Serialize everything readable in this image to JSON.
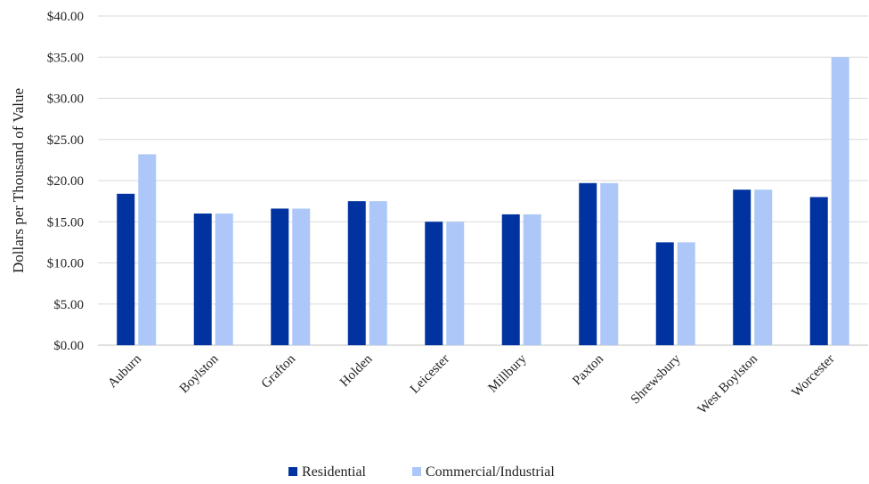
{
  "chart_data": {
    "type": "bar",
    "title": "",
    "xlabel": "",
    "ylabel": "Dollars per Thousand of Value",
    "ylim": [
      0,
      40
    ],
    "y_ticks": [
      "$0.00",
      "$5.00",
      "$10.00",
      "$15.00",
      "$20.00",
      "$25.00",
      "$30.00",
      "$35.00",
      "$40.00"
    ],
    "grid": true,
    "legend_position": "bottom",
    "categories": [
      "Auburn",
      "Boylston",
      "Grafton",
      "Holden",
      "Leicester",
      "Millbury",
      "Paxton",
      "Shrewsbury",
      "West Boylston",
      "Worcester"
    ],
    "series": [
      {
        "name": "Residential",
        "color": "#0033a0",
        "values": [
          18.4,
          16.0,
          16.6,
          17.5,
          15.0,
          15.9,
          19.7,
          12.5,
          18.9,
          18.0
        ]
      },
      {
        "name": "Commercial/Industrial",
        "color": "#adc8f8",
        "values": [
          23.2,
          16.0,
          16.6,
          17.5,
          15.0,
          15.9,
          19.7,
          12.5,
          18.9,
          35.0
        ]
      }
    ]
  }
}
